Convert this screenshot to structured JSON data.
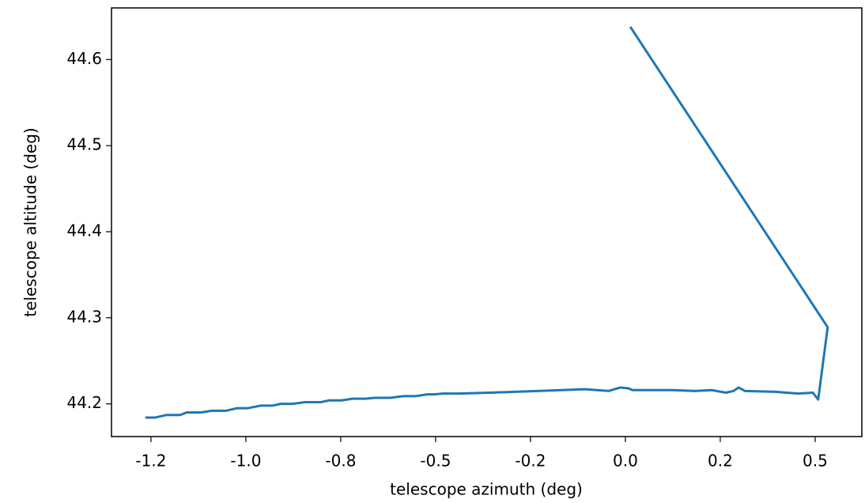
{
  "chart_data": {
    "type": "line",
    "x_label": "telescope azimuth (deg)",
    "y_label": "telescope altitude (deg)",
    "xlim": [
      -1.354,
      0.623
    ],
    "ylim": [
      44.162,
      44.66
    ],
    "xticks": [
      {
        "value": -1.25,
        "label": "-1.2"
      },
      {
        "value": -1.0,
        "label": "-1.0"
      },
      {
        "value": -0.75,
        "label": "-0.8"
      },
      {
        "value": -0.5,
        "label": "-0.5"
      },
      {
        "value": -0.25,
        "label": "-0.2"
      },
      {
        "value": 0.0,
        "label": "0.0"
      },
      {
        "value": 0.25,
        "label": "0.2"
      },
      {
        "value": 0.5,
        "label": "0.5"
      }
    ],
    "yticks": [
      44.2,
      44.3,
      44.4,
      44.5,
      44.6
    ],
    "series": [
      {
        "color": "#1f77b4",
        "x": [
          -1.265,
          -1.24,
          -1.21,
          -1.173,
          -1.156,
          -1.119,
          -1.09,
          -1.052,
          -1.023,
          -0.994,
          -0.96,
          -0.929,
          -0.908,
          -0.877,
          -0.844,
          -0.802,
          -0.781,
          -0.748,
          -0.719,
          -0.685,
          -0.66,
          -0.619,
          -0.585,
          -0.552,
          -0.523,
          -0.502,
          -0.481,
          -0.44,
          -0.356,
          -0.231,
          -0.106,
          -0.044,
          -0.013,
          0.008,
          0.019,
          0.123,
          0.185,
          0.227,
          0.265,
          0.285,
          0.298,
          0.315,
          0.394,
          0.456,
          0.494,
          0.508,
          0.533,
          0.013
        ],
        "values": [
          44.184,
          44.184,
          44.187,
          44.187,
          44.19,
          44.19,
          44.192,
          44.192,
          44.195,
          44.195,
          44.198,
          44.198,
          44.2,
          44.2,
          44.202,
          44.202,
          44.204,
          44.204,
          44.206,
          44.206,
          44.207,
          44.207,
          44.209,
          44.209,
          44.211,
          44.211,
          44.212,
          44.212,
          44.213,
          44.215,
          44.217,
          44.215,
          44.219,
          44.218,
          44.216,
          44.216,
          44.215,
          44.216,
          44.213,
          44.215,
          44.219,
          44.215,
          44.214,
          44.212,
          44.213,
          44.205,
          44.289,
          44.638
        ]
      }
    ]
  }
}
